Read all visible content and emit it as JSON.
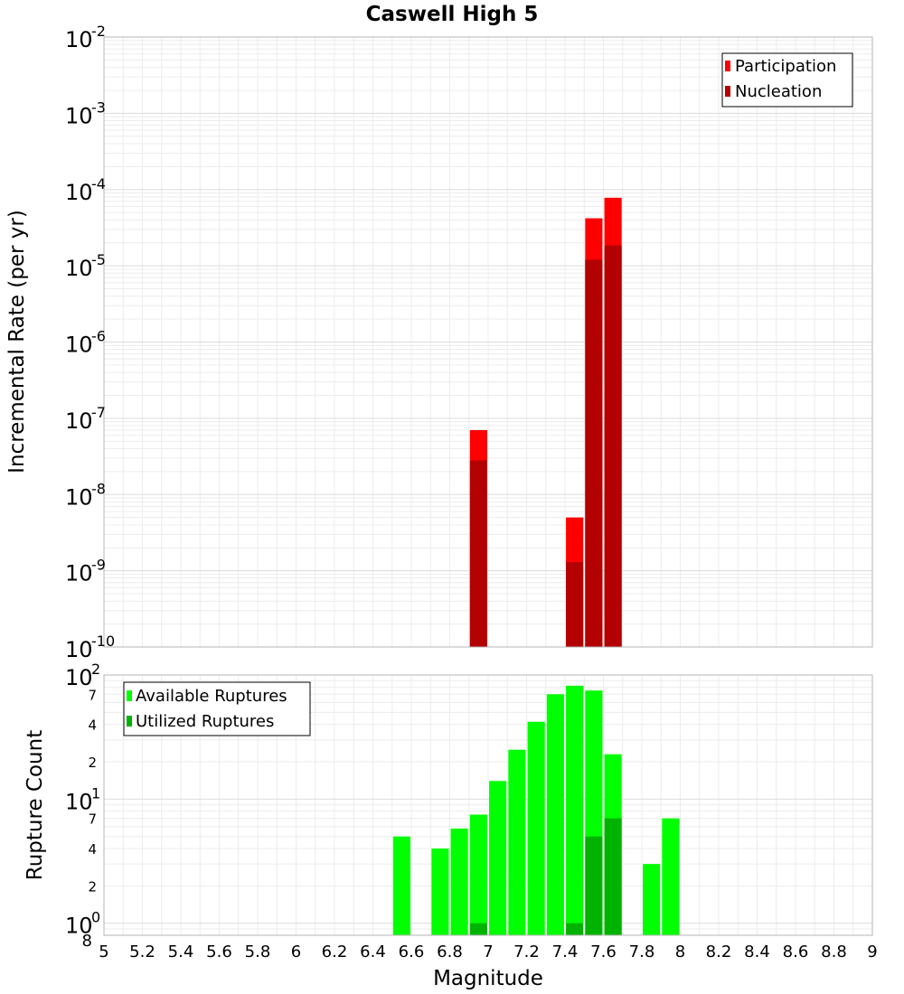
{
  "chart_data": [
    {
      "type": "bar",
      "title": "Caswell High 5",
      "xlabel": "",
      "ylabel": "Incremental Rate (per yr)",
      "yscale": "log",
      "ylim": [
        1e-10,
        0.01
      ],
      "xlim": [
        5,
        9
      ],
      "grid": true,
      "legend_position": "top-right",
      "bar_width": 0.09,
      "y_tick_bases": [
        "10",
        "10",
        "10",
        "10",
        "10",
        "10",
        "10",
        "10",
        "10"
      ],
      "y_tick_exponents": [
        "-10",
        "-9",
        "-8",
        "-7",
        "-6",
        "-5",
        "-4",
        "-3",
        "-2"
      ],
      "x": [
        6.95,
        7.45,
        7.55,
        7.65
      ],
      "series": [
        {
          "name": "Participation",
          "color": "#ff0000",
          "values": [
            7e-08,
            5e-09,
            4.2e-05,
            7.8e-05
          ]
        },
        {
          "name": "Nucleation",
          "color": "#b30000",
          "values": [
            2.8e-08,
            1.3e-09,
            1.2e-05,
            1.85e-05
          ]
        }
      ]
    },
    {
      "type": "bar",
      "title": "",
      "xlabel": "Magnitude",
      "ylabel": "Rupture Count",
      "yscale": "log",
      "ylim": [
        0.8,
        100
      ],
      "xlim": [
        5,
        9
      ],
      "grid": true,
      "legend_position": "top-left",
      "bar_width": 0.09,
      "x_tick_labels": [
        "5",
        "5.2",
        "5.4",
        "5.6",
        "5.8",
        "6",
        "6.2",
        "6.4",
        "6.6",
        "6.8",
        "7",
        "7.2",
        "7.4",
        "7.6",
        "7.8",
        "8",
        "8.2",
        "8.4",
        "8.6",
        "8.8",
        "9"
      ],
      "y_major_bases": [
        "10",
        "10",
        "10"
      ],
      "y_major_exponents": [
        "0",
        "1",
        "2"
      ],
      "y_minor_labels": [
        "8",
        "2",
        "4",
        "7",
        "2",
        "4",
        "7"
      ],
      "x": [
        6.55,
        6.75,
        6.85,
        6.95,
        7.05,
        7.15,
        7.25,
        7.35,
        7.45,
        7.55,
        7.65,
        7.85,
        7.95
      ],
      "series": [
        {
          "name": "Available Ruptures",
          "color": "#00ff00",
          "values": [
            5,
            4,
            5.8,
            7.5,
            14,
            25,
            42,
            70,
            82,
            75,
            23,
            3,
            7
          ]
        },
        {
          "name": "Utilized Ruptures",
          "color": "#00b300",
          "values": [
            0,
            0,
            0,
            1,
            0,
            0,
            0,
            0,
            1,
            5,
            7,
            0,
            0
          ]
        }
      ]
    }
  ]
}
